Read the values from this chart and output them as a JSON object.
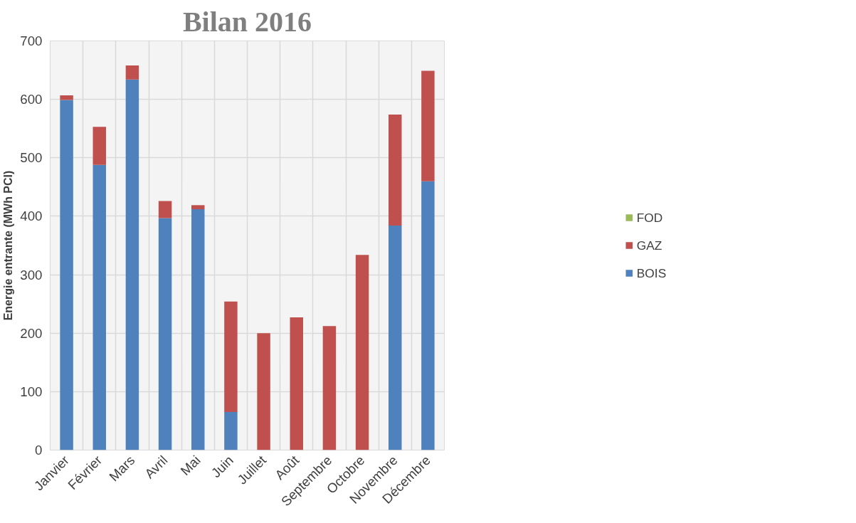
{
  "chart_data": {
    "type": "bar",
    "title": "Bilan 2016",
    "ylabel": "Energie entrante (MWh PCI)",
    "categories": [
      "Janvier",
      "Février",
      "Mars",
      "Avril",
      "Mai",
      "Juin",
      "Juillet",
      "Août",
      "Septembre",
      "Octobre",
      "Novembre",
      "Décembre"
    ],
    "stacked": true,
    "series": [
      {
        "name": "BOIS",
        "color": "#4f81bd",
        "values": [
          599,
          488,
          634,
          397,
          412,
          65,
          0,
          0,
          0,
          0,
          384,
          460
        ]
      },
      {
        "name": "GAZ",
        "color": "#c0504d",
        "values": [
          8,
          65,
          24,
          29,
          7,
          189,
          200,
          227,
          212,
          334,
          190,
          189
        ]
      },
      {
        "name": "FOD",
        "color": "#9bbb59",
        "values": [
          0,
          0,
          0,
          0,
          0,
          0,
          0,
          0,
          0,
          0,
          0,
          0
        ]
      }
    ],
    "ylim": [
      0,
      700
    ],
    "yticks": [
      0,
      100,
      200,
      300,
      400,
      500,
      600,
      700
    ],
    "grid": true,
    "legend": "right"
  }
}
